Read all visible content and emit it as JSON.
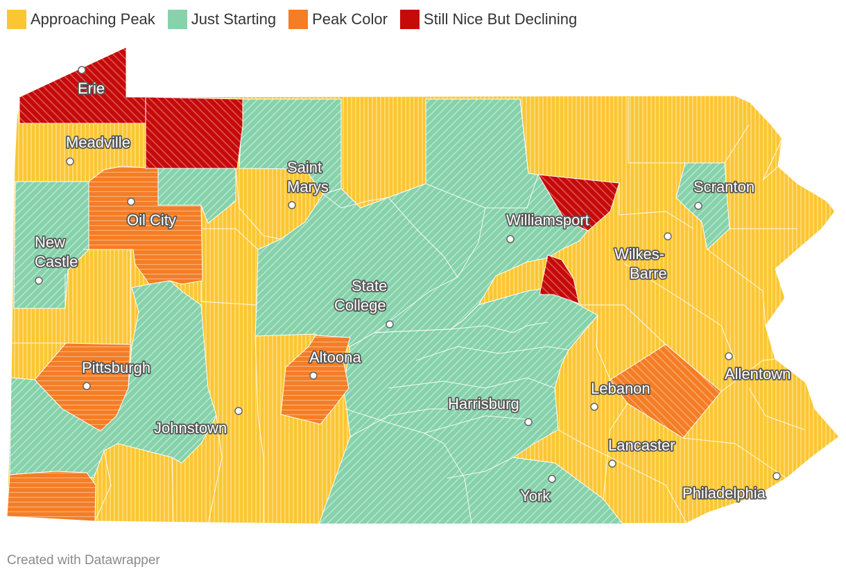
{
  "legend": [
    {
      "key": "approaching",
      "label": "Approaching Peak",
      "color": "#fcc633"
    },
    {
      "key": "starting",
      "label": "Just Starting",
      "color": "#86d2ab"
    },
    {
      "key": "peak",
      "label": "Peak Color",
      "color": "#f47d25"
    },
    {
      "key": "declining",
      "label": "Still Nice But Declining",
      "color": "#c50a0a"
    }
  ],
  "cities": {
    "erie": "Erie",
    "meadville": "Meadville",
    "oil_city": "Oil City",
    "new_castle": [
      "New",
      "Castle"
    ],
    "saint_marys": [
      "Saint",
      "Marys"
    ],
    "williamsport": "Williamsport",
    "scranton": "Scranton",
    "wilkes_barre": [
      "Wilkes-",
      "Barre"
    ],
    "state_college": [
      "State",
      "College"
    ],
    "pittsburgh": "Pittsburgh",
    "altoona": "Altoona",
    "johnstown": "Johnstown",
    "harrisburg": "Harrisburg",
    "lebanon": "Lebanon",
    "allentown": "Allentown",
    "lancaster": "Lancaster",
    "york": "York",
    "philadelphia": "Philadelphia"
  },
  "footer": "Created with Datawrapper"
}
